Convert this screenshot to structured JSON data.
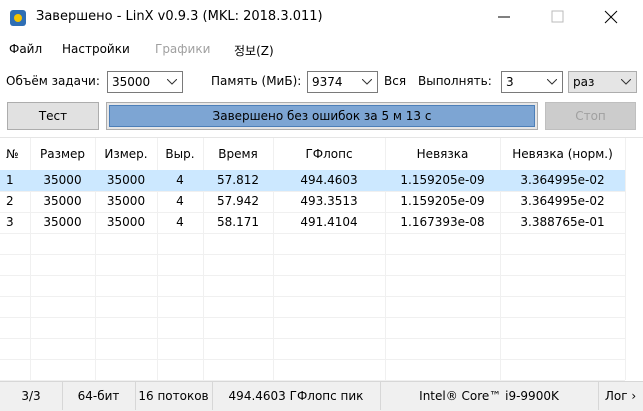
{
  "window": {
    "title": "Завершено - LinX v0.9.3 (MKL: 2018.3.011)"
  },
  "menu": [
    "Файл",
    "Настройки",
    "Графики",
    "정보(Z)"
  ],
  "toolbar": {
    "size_label": "Объём задачи:",
    "size_value": "35000",
    "memory_label": "Память (МиБ):",
    "memory_value": "9374",
    "all_label": "Вся",
    "runs_label": "Выполнять:",
    "runs_value": "3",
    "runs_unit": "раз"
  },
  "buttons": {
    "test": "Тест",
    "progress": "Завершено без ошибок за 5 м 13 с",
    "stop": "Стоп"
  },
  "table": {
    "columns": [
      "№",
      "Размер",
      "Измер.",
      "Выр.",
      "Время",
      "ГФлопс",
      "Невязка",
      "Невязка (норм.)"
    ],
    "rows": [
      [
        "1",
        "35000",
        "35000",
        "4",
        "57.812",
        "494.4603",
        "1.159205e-09",
        "3.364995e-02"
      ],
      [
        "2",
        "35000",
        "35000",
        "4",
        "57.942",
        "493.3513",
        "1.159205e-09",
        "3.364995e-02"
      ],
      [
        "3",
        "35000",
        "35000",
        "4",
        "58.171",
        "491.4104",
        "1.167393e-08",
        "3.388765e-01"
      ]
    ]
  },
  "status": [
    "3/3",
    "64-бит",
    "16 потоков",
    "494.4603 ГФлопс пик",
    "Intel® Core™ i9-9900K",
    "Лог ›"
  ]
}
